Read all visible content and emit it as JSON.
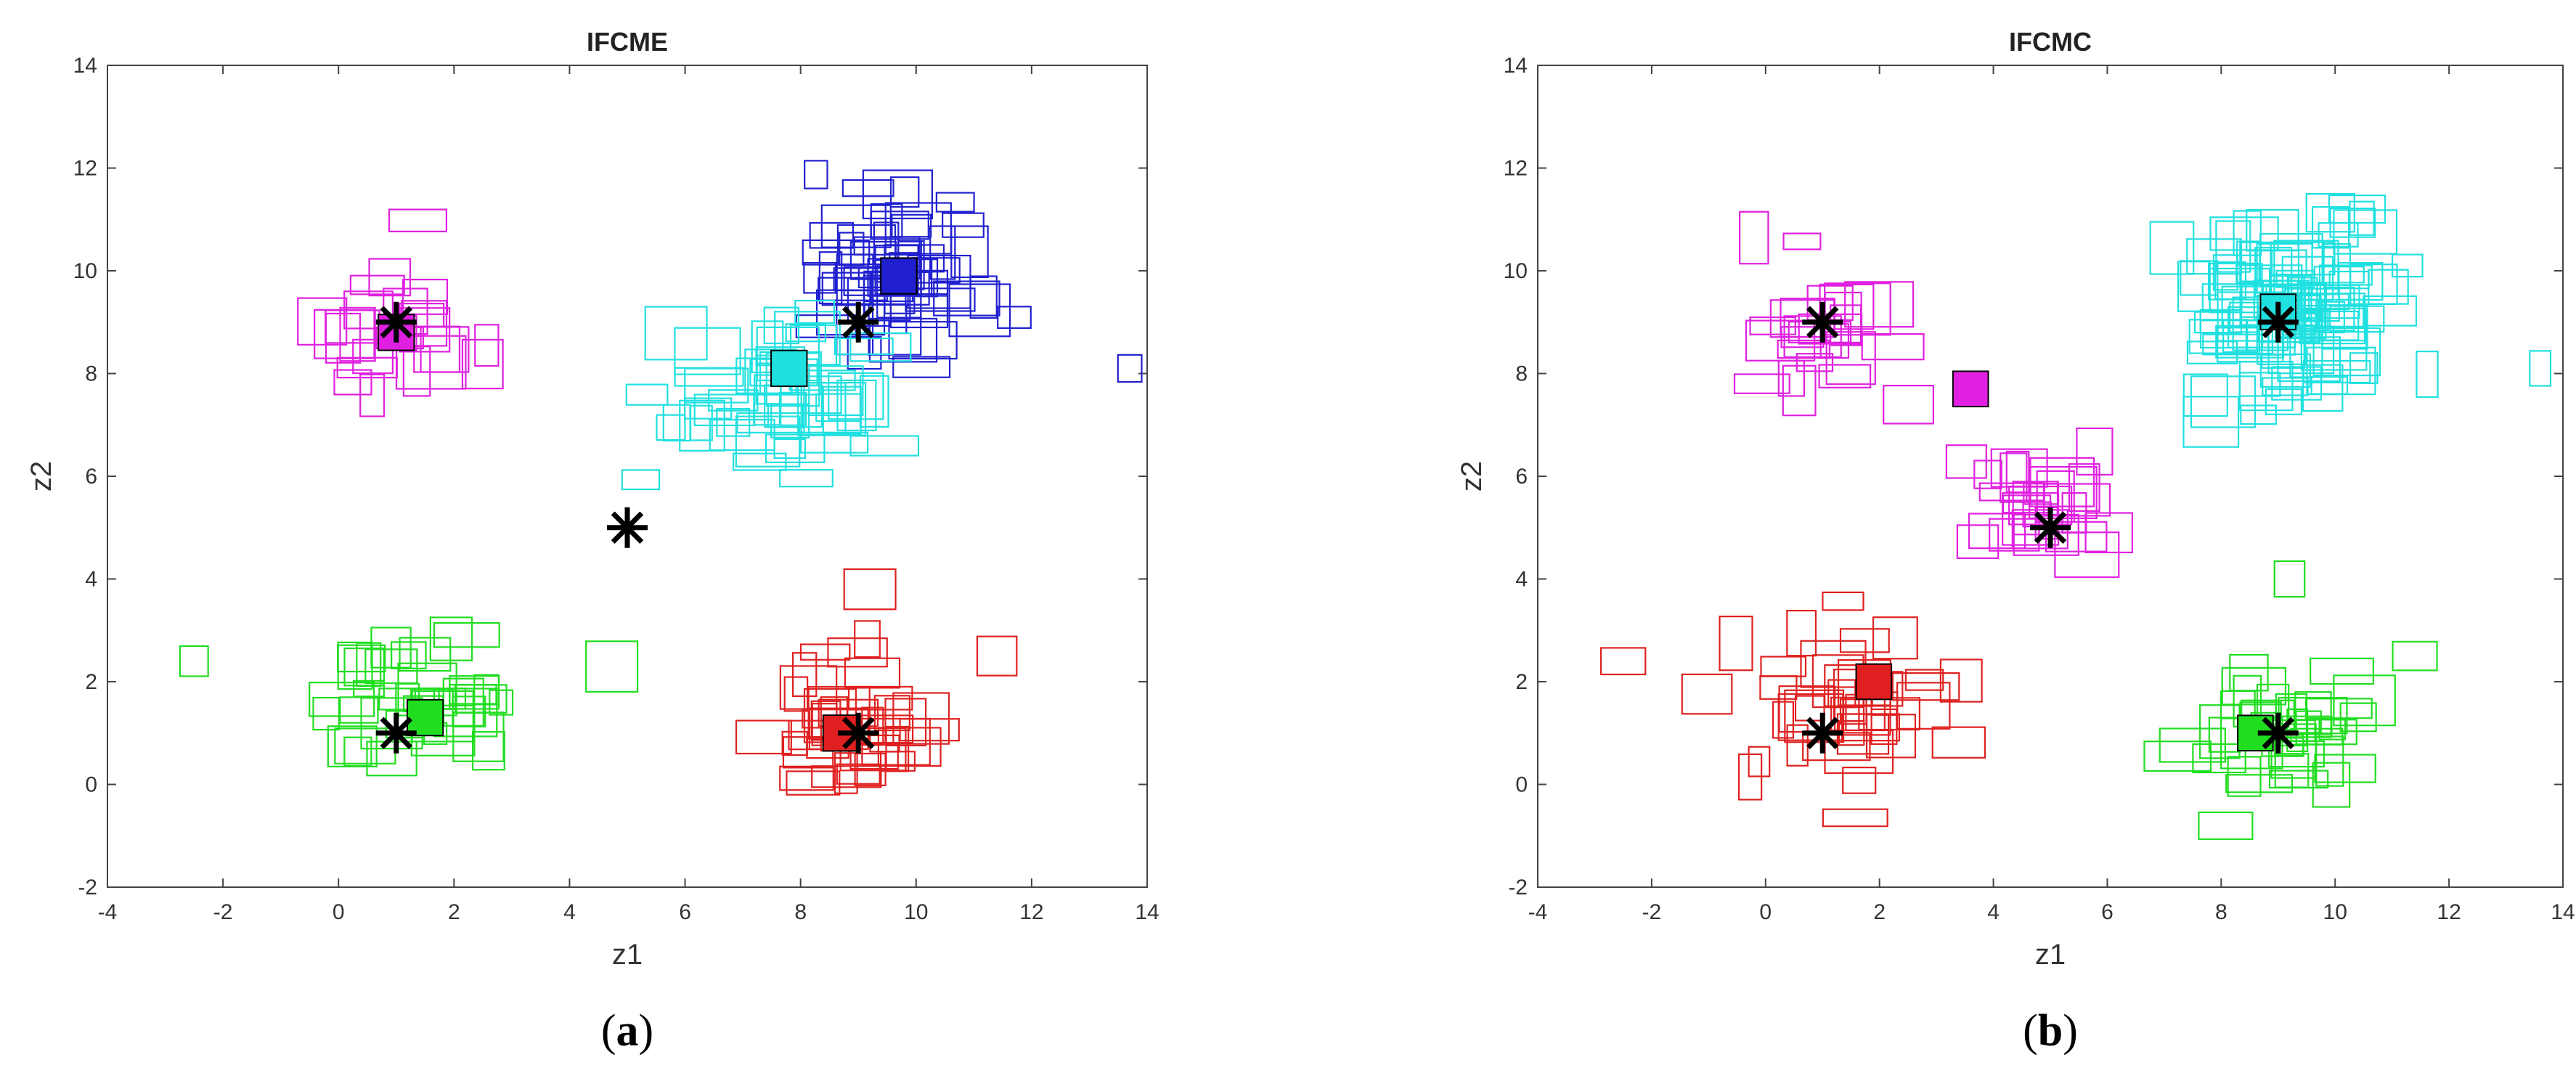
{
  "chart_data": [
    {
      "type": "scatter",
      "title": "IFCME",
      "xlabel": "z1",
      "ylabel": "z2",
      "xlim": [
        -4,
        14
      ],
      "ylim": [
        -2,
        14
      ],
      "xticks": [
        -4,
        -2,
        0,
        2,
        4,
        6,
        8,
        10,
        12,
        14
      ],
      "yticks": [
        -2,
        0,
        2,
        4,
        6,
        8,
        10,
        12,
        14
      ],
      "caption_letter": "a",
      "true_centers": [
        [
          1,
          9
        ],
        [
          9,
          9
        ],
        [
          5,
          5
        ],
        [
          1,
          1
        ],
        [
          9,
          1
        ]
      ],
      "series": [
        {
          "name": "magenta cluster",
          "color": "#e020e0",
          "center": [
            1,
            9
          ],
          "count": 26,
          "spread": [
            1.0,
            1.0
          ]
        },
        {
          "name": "blue cluster",
          "color": "#2020d0",
          "center": [
            9.6,
            9.8
          ],
          "count": 60,
          "spread": [
            1.0,
            0.9
          ]
        },
        {
          "name": "cyan cluster",
          "color": "#20e0e0",
          "center": [
            7.6,
            7.6
          ],
          "count": 55,
          "spread": [
            1.3,
            1.0
          ]
        },
        {
          "name": "green cluster",
          "color": "#20dd20",
          "center": [
            1.5,
            1.6
          ],
          "count": 40,
          "spread": [
            1.3,
            1.0
          ]
        },
        {
          "name": "red cluster",
          "color": "#e02020",
          "center": [
            9,
            1.1
          ],
          "count": 40,
          "spread": [
            0.9,
            0.9
          ]
        }
      ],
      "outliers": [
        {
          "x": 13.7,
          "y": 8.1,
          "color": "#2020d0"
        },
        {
          "x": 9.2,
          "y": 3.8,
          "color": "#e02020"
        },
        {
          "x": -2.5,
          "y": 2.4,
          "color": "#20dd20"
        },
        {
          "x": 11.4,
          "y": 2.5,
          "color": "#e02020"
        }
      ],
      "estimated_centers": [
        {
          "x": 1.0,
          "y": 8.8,
          "color": "#e020e0"
        },
        {
          "x": 9.7,
          "y": 9.9,
          "color": "#2020d0"
        },
        {
          "x": 7.8,
          "y": 8.1,
          "color": "#20e0e0"
        },
        {
          "x": 1.5,
          "y": 1.3,
          "color": "#20dd20"
        },
        {
          "x": 8.7,
          "y": 1.0,
          "color": "#e02020"
        }
      ]
    },
    {
      "type": "scatter",
      "title": "IFCMC",
      "xlabel": "z1",
      "ylabel": "z2",
      "xlim": [
        -4,
        14
      ],
      "ylim": [
        -2,
        14
      ],
      "xticks": [
        -4,
        -2,
        0,
        2,
        4,
        6,
        8,
        10,
        12,
        14
      ],
      "yticks": [
        -2,
        0,
        2,
        4,
        6,
        8,
        10,
        12,
        14
      ],
      "caption_letter": "b",
      "true_centers": [
        [
          1,
          9
        ],
        [
          9,
          9
        ],
        [
          5,
          5
        ],
        [
          1,
          1
        ],
        [
          9,
          1
        ]
      ],
      "series": [
        {
          "name": "magenta cluster A",
          "color": "#e020e0",
          "center": [
            1,
            9
          ],
          "count": 26,
          "spread": [
            1.0,
            1.0
          ]
        },
        {
          "name": "cyan cluster",
          "color": "#20e0e0",
          "center": [
            9.1,
            9.2
          ],
          "count": 110,
          "spread": [
            1.3,
            1.2
          ]
        },
        {
          "name": "magenta cluster B",
          "color": "#e020e0",
          "center": [
            4.9,
            5.4
          ],
          "count": 28,
          "spread": [
            0.7,
            0.7
          ]
        },
        {
          "name": "red cluster",
          "color": "#e02020",
          "center": [
            1.3,
            1.6
          ],
          "count": 42,
          "spread": [
            1.3,
            1.0
          ]
        },
        {
          "name": "green cluster",
          "color": "#20dd20",
          "center": [
            9,
            1.1
          ],
          "count": 40,
          "spread": [
            0.9,
            0.9
          ]
        }
      ],
      "outliers": [
        {
          "x": 13.6,
          "y": 8.1,
          "color": "#20e0e0"
        },
        {
          "x": 9.2,
          "y": 4.0,
          "color": "#20dd20"
        },
        {
          "x": -2.5,
          "y": 2.4,
          "color": "#e02020"
        },
        {
          "x": 11.4,
          "y": 2.5,
          "color": "#20dd20"
        }
      ],
      "estimated_centers": [
        {
          "x": 3.6,
          "y": 7.7,
          "color": "#e020e0"
        },
        {
          "x": 9.0,
          "y": 9.2,
          "color": "#20e0e0"
        },
        {
          "x": 1.9,
          "y": 2.0,
          "color": "#e02020"
        },
        {
          "x": 8.6,
          "y": 1.0,
          "color": "#20dd20"
        }
      ]
    }
  ]
}
